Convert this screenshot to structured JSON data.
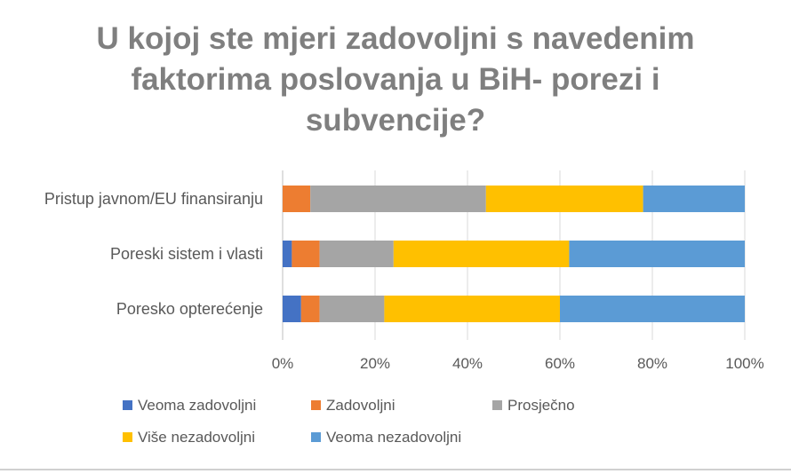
{
  "chart_data": {
    "type": "bar",
    "orientation": "horizontal",
    "stacked": "percent",
    "title": "U kojoj ste mjeri zadovoljni s navedenim faktorima poslovanja u BiH- porezi i subvencije?",
    "title_lines": [
      "U kojoj ste mjeri zadovoljni s navedenim",
      "faktorima poslovanja u BiH- porezi i",
      "subvencije?"
    ],
    "categories": [
      "Pristup javnom/EU finansiranju",
      "Poreski sistem i vlasti",
      "Poresko opterećenje"
    ],
    "series": [
      {
        "name": "Veoma zadovoljni",
        "color": "#4472c4",
        "values": [
          0,
          2,
          4
        ]
      },
      {
        "name": "Zadovoljni",
        "color": "#ed7d31",
        "values": [
          6,
          6,
          4
        ]
      },
      {
        "name": "Prosječno",
        "color": "#a5a5a5",
        "values": [
          38,
          16,
          14
        ]
      },
      {
        "name": "Više nezadovoljni",
        "color": "#ffc000",
        "values": [
          34,
          38,
          38
        ]
      },
      {
        "name": "Veoma nezadovoljni",
        "color": "#5b9bd5",
        "values": [
          22,
          38,
          40
        ]
      }
    ],
    "xlim": [
      0,
      100
    ],
    "x_ticks": [
      "0%",
      "20%",
      "40%",
      "60%",
      "80%",
      "100%"
    ],
    "grid": true,
    "legend_position": "bottom"
  }
}
